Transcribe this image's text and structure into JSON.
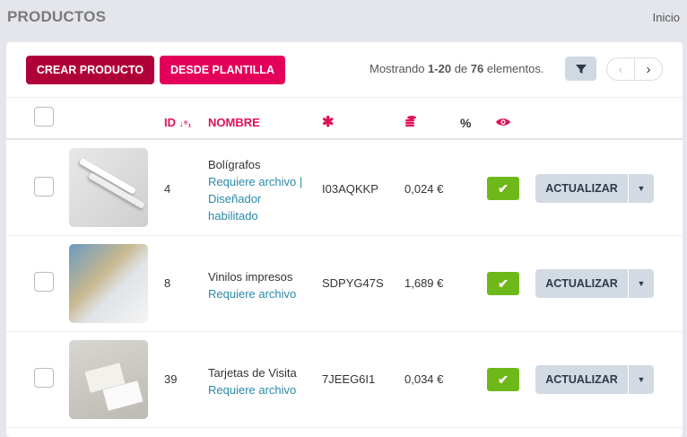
{
  "header": {
    "title": "PRODUCTOS",
    "breadcrumb": "Inicio"
  },
  "toolbar": {
    "create": "CREAR PRODUCTO",
    "template": "DESDE PLANTILLA",
    "showing_pre": "Mostrando ",
    "showing_range": "1-20",
    "showing_mid": " de ",
    "showing_total": "76",
    "showing_post": " elementos.",
    "prev": "‹",
    "next": "›"
  },
  "columns": {
    "id": "ID",
    "sort_icon": "↓⁹₁",
    "name": "NOMBRE",
    "ref_icon": "✱",
    "price_icon": "coins-icon",
    "percent": "%",
    "visible_icon": "eye-icon"
  },
  "rows": [
    {
      "id": "4",
      "name": "Bolígrafos",
      "tags": "Requiere archivo | Diseñador habilitado",
      "ref": "I03AQKKP",
      "price": "0,024 €",
      "action": "ACTUALIZAR"
    },
    {
      "id": "8",
      "name": "Vinilos impresos",
      "tags": "Requiere archivo",
      "ref": "SDPYG47S",
      "price": "1,689 €",
      "action": "ACTUALIZAR"
    },
    {
      "id": "39",
      "name": "Tarjetas de Visita",
      "tags": "Requiere archivo",
      "ref": "7JEEG6I1",
      "price": "0,034 €",
      "action": "ACTUALIZAR"
    }
  ],
  "colors": {
    "primary": "#b0003a",
    "accent": "#e4005a",
    "ok": "#6fb81a"
  }
}
